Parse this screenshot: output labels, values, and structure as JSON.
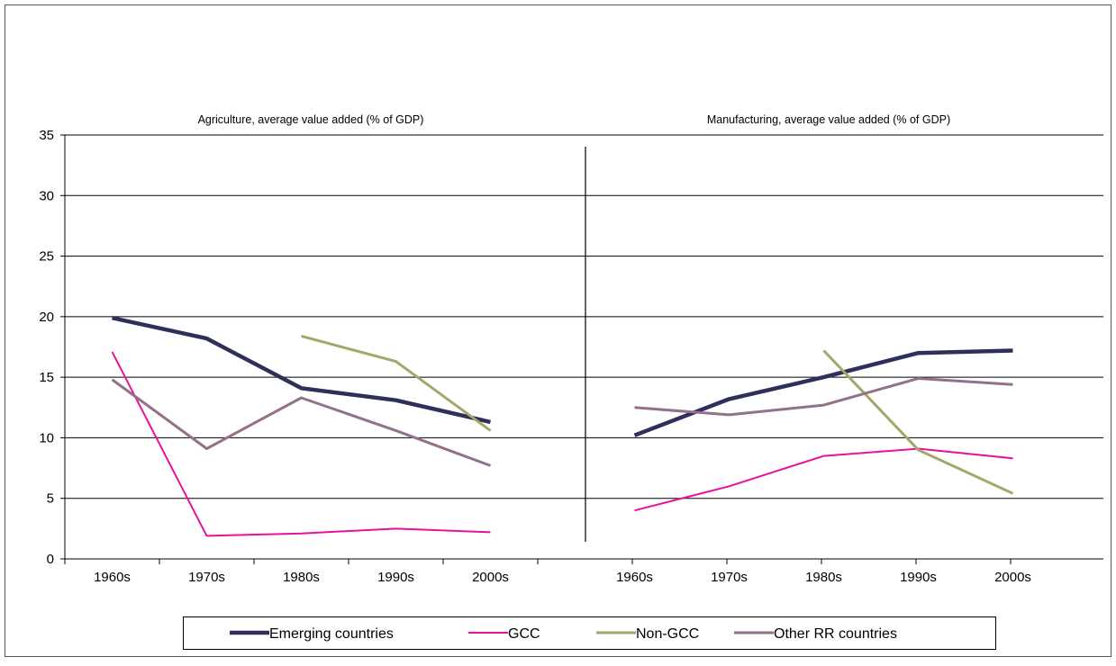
{
  "colors": {
    "emerging": "#2e2f5b",
    "gcc": "#e8129a",
    "non_gcc": "#a3a86a",
    "other_rr": "#93718a"
  },
  "chart_data": {
    "type": "line",
    "y_axis": {
      "ylim": [
        0,
        35
      ],
      "ticks": [
        "0",
        "5",
        "10",
        "15",
        "20",
        "25",
        "30",
        "35"
      ],
      "grid": true
    },
    "categories": [
      "1960s",
      "1970s",
      "1980s",
      "1990s",
      "2000s"
    ],
    "panels": [
      {
        "title": "Agriculture, average value added (% of GDP)",
        "series": [
          {
            "key": "emerging",
            "values": [
              19.9,
              18.2,
              14.1,
              13.1,
              11.3
            ]
          },
          {
            "key": "gcc",
            "values": [
              17.1,
              1.9,
              2.1,
              2.5,
              2.2
            ]
          },
          {
            "key": "non_gcc",
            "values": [
              null,
              null,
              18.4,
              16.3,
              10.6
            ]
          },
          {
            "key": "other_rr",
            "values": [
              14.8,
              9.1,
              13.3,
              10.6,
              7.7
            ]
          }
        ]
      },
      {
        "title": "Manufacturing, average value added (% of GDP)",
        "series": [
          {
            "key": "emerging",
            "values": [
              10.2,
              13.2,
              15.0,
              17.0,
              17.2
            ]
          },
          {
            "key": "gcc",
            "values": [
              4.0,
              6.0,
              8.5,
              9.1,
              8.3
            ]
          },
          {
            "key": "non_gcc",
            "values": [
              null,
              null,
              17.2,
              9.0,
              5.4
            ]
          },
          {
            "key": "other_rr",
            "values": [
              12.5,
              11.9,
              12.7,
              14.9,
              14.4
            ]
          }
        ]
      }
    ],
    "legend": {
      "position": "bottom",
      "entries": [
        {
          "key": "emerging",
          "label": "Emerging countries"
        },
        {
          "key": "gcc",
          "label": "GCC"
        },
        {
          "key": "non_gcc",
          "label": "Non-GCC"
        },
        {
          "key": "other_rr",
          "label": "Other RR countries"
        }
      ]
    }
  }
}
